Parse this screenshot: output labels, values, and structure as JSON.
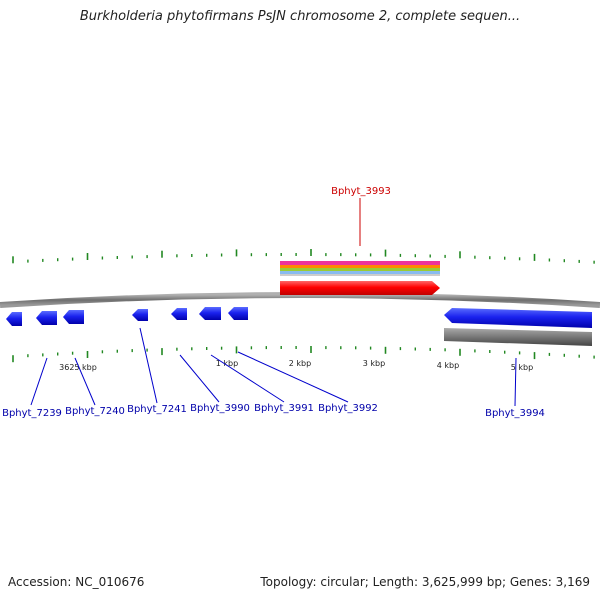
{
  "title": "Burkholderia phytofirmans PsJN chromosome 2, complete sequen...",
  "focus_gene": {
    "name": "Bphyt_3993",
    "label_color": "#cc0000"
  },
  "genes": [
    {
      "name": "Bphyt_7239",
      "strand": "-"
    },
    {
      "name": "Bphyt_7240",
      "strand": "-"
    },
    {
      "name": "Bphyt_7241",
      "strand": "-"
    },
    {
      "name": "Bphyt_3990",
      "strand": "-"
    },
    {
      "name": "Bphyt_3991",
      "strand": "-"
    },
    {
      "name": "Bphyt_3992",
      "strand": "-"
    },
    {
      "name": "Bphyt_3993",
      "strand": "+"
    },
    {
      "name": "Bphyt_3994",
      "strand": "-"
    }
  ],
  "scale_labels": [
    "3625 kbp",
    "1 kbp",
    "2 kbp",
    "3 kbp",
    "4 kbp",
    "5 kbp"
  ],
  "colors": {
    "backbone": "#888888",
    "forward_gene": "#ff0000",
    "reverse_gene": "#0000ee",
    "tick": "#228822",
    "label": "#0000aa"
  },
  "footer": {
    "accession": "Accession: NC_010676",
    "stats": "Topology: circular; Length: 3,625,999 bp; Genes: 3,169"
  }
}
